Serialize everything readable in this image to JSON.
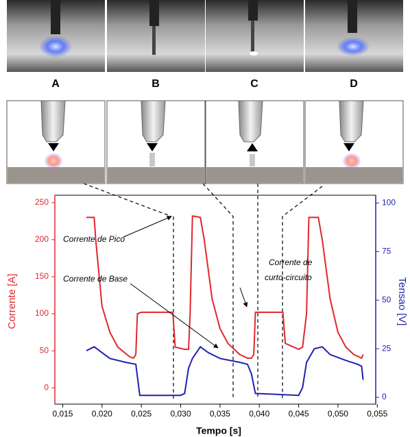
{
  "panels": [
    "A",
    "B",
    "C",
    "D"
  ],
  "chart_data": {
    "type": "line",
    "xlabel": "Tempo [s]",
    "ylabel": "Corrente [A]",
    "y2label": "Tensao [V]",
    "annotations": [
      "Corrente de Pico",
      "Corrente de  Base",
      "Corrente de",
      "curto-circuito"
    ],
    "xlim": [
      0.014,
      0.0548
    ],
    "xticks": [
      {
        "value": 0.015,
        "label": "0,015"
      },
      {
        "value": 0.02,
        "label": "0,020"
      },
      {
        "value": 0.025,
        "label": "0,025"
      },
      {
        "value": 0.03,
        "label": "0,030"
      },
      {
        "value": 0.035,
        "label": "0,035"
      },
      {
        "value": 0.04,
        "label": "0,040"
      },
      {
        "value": 0.045,
        "label": "0,045"
      },
      {
        "value": 0.05,
        "label": "0,050"
      },
      {
        "value": 0.055,
        "label": "0,055"
      }
    ],
    "ylim": [
      -22,
      260
    ],
    "yticks": [
      0,
      50,
      100,
      150,
      200,
      250
    ],
    "y2lim": [
      -3.5,
      104
    ],
    "y2ticks": [
      0,
      25,
      50,
      75,
      100
    ],
    "ycolor": "#e0262b",
    "y2color": "#1f1fb0",
    "series": [
      {
        "color": "#e0262b",
        "x": [
          0.018,
          0.019,
          0.0192,
          0.02,
          0.021,
          0.022,
          0.0235,
          0.024,
          0.0243,
          0.0245,
          0.025,
          0.029,
          0.0293,
          0.0305,
          0.031,
          0.0312,
          0.0315,
          0.0325,
          0.033,
          0.034,
          0.035,
          0.036,
          0.0375,
          0.0385,
          0.039,
          0.0393,
          0.0395,
          0.043,
          0.0433,
          0.045,
          0.0455,
          0.046,
          0.0463,
          0.0475,
          0.048,
          0.049,
          0.05,
          0.051,
          0.052,
          0.053,
          0.0532
        ],
        "values": [
          230,
          230,
          200,
          110,
          75,
          55,
          42,
          40,
          45,
          100,
          102,
          102,
          55,
          52,
          52,
          100,
          232,
          230,
          200,
          120,
          80,
          60,
          45,
          40,
          40,
          45,
          102,
          102,
          60,
          52,
          55,
          100,
          230,
          230,
          200,
          120,
          75,
          55,
          45,
          40,
          45
        ]
      },
      {
        "color": "#1f1fb0",
        "axis": "y2",
        "x": [
          0.018,
          0.019,
          0.02,
          0.021,
          0.023,
          0.0243,
          0.0248,
          0.03,
          0.0305,
          0.031,
          0.0315,
          0.0325,
          0.0335,
          0.035,
          0.0375,
          0.0385,
          0.039,
          0.0395,
          0.045,
          0.0455,
          0.046,
          0.047,
          0.048,
          0.049,
          0.051,
          0.0525,
          0.053,
          0.0532
        ],
        "values": [
          24,
          26,
          23,
          20,
          18,
          17,
          1,
          1,
          2,
          15,
          20,
          26,
          23,
          20,
          18,
          17,
          12,
          2,
          1,
          5,
          18,
          25,
          26,
          22,
          19,
          17,
          16,
          9
        ]
      }
    ]
  }
}
